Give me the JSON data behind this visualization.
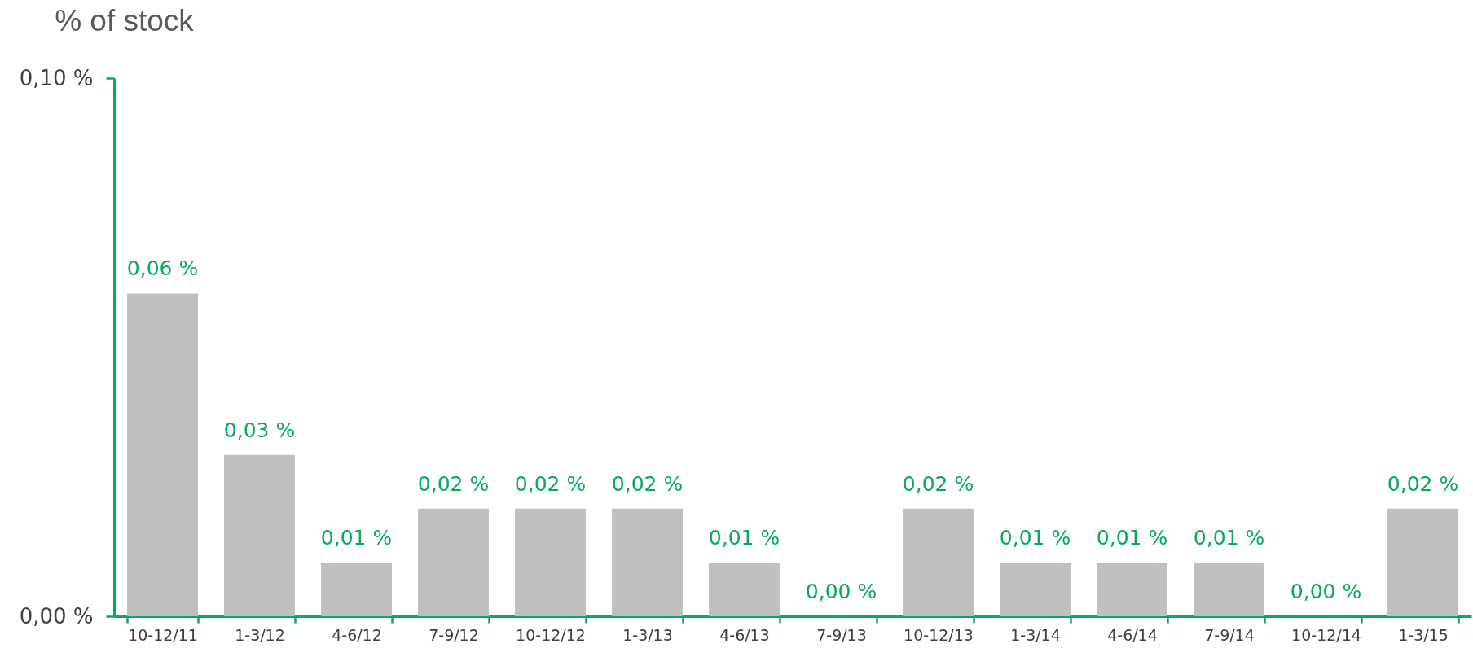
{
  "chart_data": {
    "type": "bar",
    "ylabel": "% of stock",
    "categories": [
      "10-12/11",
      "1-3/12",
      "4-6/12",
      "7-9/12",
      "10-12/12",
      "1-3/13",
      "4-6/13",
      "7-9/13",
      "10-12/13",
      "1-3/14",
      "4-6/14",
      "7-9/14",
      "10-12/14",
      "1-3/15"
    ],
    "values": [
      0.06,
      0.03,
      0.01,
      0.02,
      0.02,
      0.02,
      0.01,
      0,
      0.02,
      0.01,
      0.01,
      0.01,
      0,
      0.02
    ],
    "value_labels": [
      "0,06 %",
      "0,03 %",
      "0,01 %",
      "0,02 %",
      "0,02 %",
      "0,02 %",
      "0,01 %",
      "0,00 %",
      "0,02 %",
      "0,01 %",
      "0,01 %",
      "0,01 %",
      "0,00 %",
      "0,02 %"
    ],
    "color": "#bfbfbf",
    "ylim": [
      0,
      0.1
    ],
    "yticks": [
      {
        "value": 0,
        "label": "0,00 %"
      },
      {
        "value": 0.1,
        "label": "0,10 %"
      }
    ]
  }
}
